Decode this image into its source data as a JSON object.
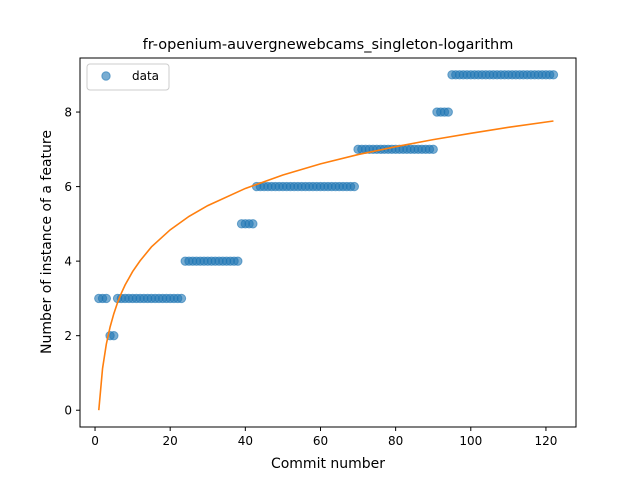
{
  "chart_data": {
    "type": "scatter",
    "title": "fr-openium-auvergnewebcams_singleton-logarithm",
    "xlabel": "Commit number",
    "ylabel": "Number of instance of a feature",
    "xlim": [
      -4,
      128
    ],
    "ylim": [
      -0.45,
      9.45
    ],
    "xticks": [
      0,
      20,
      40,
      60,
      80,
      100,
      120
    ],
    "yticks": [
      0,
      2,
      4,
      6,
      8
    ],
    "grid": false,
    "legend": {
      "placement": "top-left",
      "entries": [
        "data"
      ]
    },
    "colors": {
      "data": "#1f77b4",
      "fit": "#ff7f0e"
    },
    "series": [
      {
        "name": "data",
        "kind": "scatter",
        "points": [
          [
            1,
            3
          ],
          [
            2,
            3
          ],
          [
            3,
            3
          ],
          [
            4,
            2
          ],
          [
            5,
            2
          ],
          [
            6,
            3
          ],
          [
            7,
            3
          ],
          [
            8,
            3
          ],
          [
            9,
            3
          ],
          [
            10,
            3
          ],
          [
            11,
            3
          ],
          [
            12,
            3
          ],
          [
            13,
            3
          ],
          [
            14,
            3
          ],
          [
            15,
            3
          ],
          [
            16,
            3
          ],
          [
            17,
            3
          ],
          [
            18,
            3
          ],
          [
            19,
            3
          ],
          [
            20,
            3
          ],
          [
            21,
            3
          ],
          [
            22,
            3
          ],
          [
            23,
            3
          ],
          [
            24,
            4
          ],
          [
            25,
            4
          ],
          [
            26,
            4
          ],
          [
            27,
            4
          ],
          [
            28,
            4
          ],
          [
            29,
            4
          ],
          [
            30,
            4
          ],
          [
            31,
            4
          ],
          [
            32,
            4
          ],
          [
            33,
            4
          ],
          [
            34,
            4
          ],
          [
            35,
            4
          ],
          [
            36,
            4
          ],
          [
            37,
            4
          ],
          [
            38,
            4
          ],
          [
            39,
            5
          ],
          [
            40,
            5
          ],
          [
            41,
            5
          ],
          [
            42,
            5
          ],
          [
            43,
            6
          ],
          [
            44,
            6
          ],
          [
            45,
            6
          ],
          [
            46,
            6
          ],
          [
            47,
            6
          ],
          [
            48,
            6
          ],
          [
            49,
            6
          ],
          [
            50,
            6
          ],
          [
            51,
            6
          ],
          [
            52,
            6
          ],
          [
            53,
            6
          ],
          [
            54,
            6
          ],
          [
            55,
            6
          ],
          [
            56,
            6
          ],
          [
            57,
            6
          ],
          [
            58,
            6
          ],
          [
            59,
            6
          ],
          [
            60,
            6
          ],
          [
            61,
            6
          ],
          [
            62,
            6
          ],
          [
            63,
            6
          ],
          [
            64,
            6
          ],
          [
            65,
            6
          ],
          [
            66,
            6
          ],
          [
            67,
            6
          ],
          [
            68,
            6
          ],
          [
            69,
            6
          ],
          [
            70,
            7
          ],
          [
            71,
            7
          ],
          [
            72,
            7
          ],
          [
            73,
            7
          ],
          [
            74,
            7
          ],
          [
            75,
            7
          ],
          [
            76,
            7
          ],
          [
            77,
            7
          ],
          [
            78,
            7
          ],
          [
            79,
            7
          ],
          [
            80,
            7
          ],
          [
            81,
            7
          ],
          [
            82,
            7
          ],
          [
            83,
            7
          ],
          [
            84,
            7
          ],
          [
            85,
            7
          ],
          [
            86,
            7
          ],
          [
            87,
            7
          ],
          [
            88,
            7
          ],
          [
            89,
            7
          ],
          [
            90,
            7
          ],
          [
            91,
            8
          ],
          [
            92,
            8
          ],
          [
            93,
            8
          ],
          [
            94,
            8
          ],
          [
            95,
            9
          ],
          [
            96,
            9
          ],
          [
            97,
            9
          ],
          [
            98,
            9
          ],
          [
            99,
            9
          ],
          [
            100,
            9
          ],
          [
            101,
            9
          ],
          [
            102,
            9
          ],
          [
            103,
            9
          ],
          [
            104,
            9
          ],
          [
            105,
            9
          ],
          [
            106,
            9
          ],
          [
            107,
            9
          ],
          [
            108,
            9
          ],
          [
            109,
            9
          ],
          [
            110,
            9
          ],
          [
            111,
            9
          ],
          [
            112,
            9
          ],
          [
            113,
            9
          ],
          [
            114,
            9
          ],
          [
            115,
            9
          ],
          [
            116,
            9
          ],
          [
            117,
            9
          ],
          [
            118,
            9
          ],
          [
            119,
            9
          ],
          [
            120,
            9
          ],
          [
            121,
            9
          ],
          [
            122,
            9
          ]
        ]
      },
      {
        "kind": "line",
        "x": [
          1,
          2,
          3,
          4,
          5,
          6,
          7,
          8,
          10,
          12,
          15,
          20,
          25,
          30,
          40,
          50,
          60,
          70,
          80,
          90,
          100,
          110,
          122
        ],
        "y": [
          0.0,
          1.12,
          1.77,
          2.23,
          2.59,
          2.89,
          3.14,
          3.36,
          3.72,
          4.01,
          4.38,
          4.84,
          5.2,
          5.49,
          5.95,
          6.31,
          6.61,
          6.86,
          7.07,
          7.26,
          7.43,
          7.59,
          7.76
        ]
      }
    ]
  }
}
